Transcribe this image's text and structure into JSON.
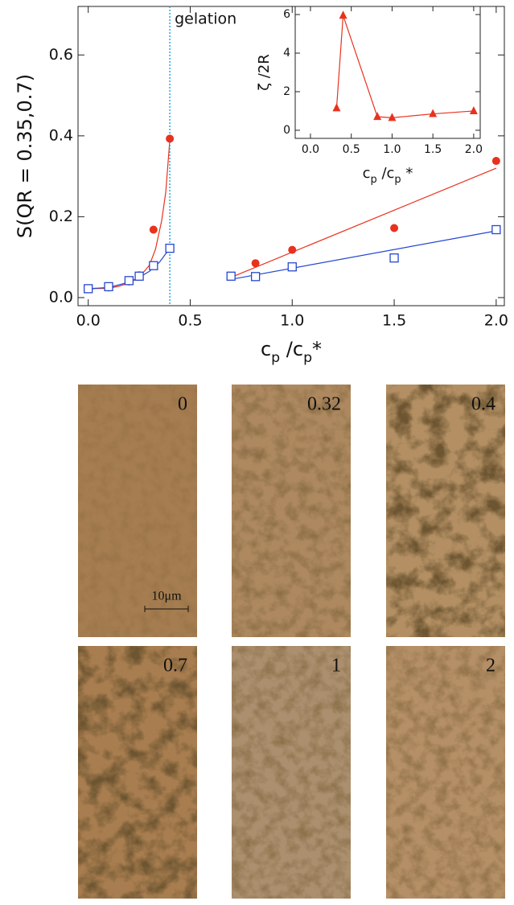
{
  "chart_data": [
    {
      "type": "scatter",
      "ylabel": "S(QR = 0.35,0.7)",
      "xlabel": [
        "c",
        "p",
        " /c",
        "p",
        "*"
      ],
      "xlim": [
        -0.05,
        2.04
      ],
      "ylim": [
        -0.02,
        0.72
      ],
      "xticks": [
        {
          "value": 0,
          "label": "0.0"
        },
        0.5,
        {
          "value": 1,
          "label": "1.0"
        },
        1.5,
        {
          "value": 2,
          "label": "2.0"
        }
      ],
      "yticks": [
        {
          "value": 0,
          "label": "0.0"
        },
        0.2,
        0.4,
        0.6
      ],
      "x": [
        0,
        0.1,
        0.2,
        0.25,
        0.32,
        0.4,
        0.7,
        0.82,
        1.0,
        1.5,
        2.0
      ],
      "series": [
        {
          "marker": "circle",
          "color": "#e8321e",
          "values": [
            0.022,
            0.025,
            0.04,
            0.055,
            0.168,
            0.393,
            0.053,
            0.085,
            0.118,
            0.172,
            0.338
          ]
        },
        {
          "marker": "square",
          "color": "#2547d0",
          "values": [
            0.022,
            0.027,
            0.042,
            0.053,
            0.079,
            0.122,
            0.053,
            0.052,
            0.076,
            0.098,
            0.168
          ]
        }
      ],
      "fits": [
        {
          "color": "#e8321e",
          "x": [
            0,
            0.1,
            0.15,
            0.2,
            0.25,
            0.3,
            0.33,
            0.36,
            0.38,
            0.4
          ],
          "values": [
            0.022,
            0.023,
            0.028,
            0.036,
            0.05,
            0.08,
            0.12,
            0.19,
            0.26,
            0.39
          ]
        },
        {
          "color": "#e8321e",
          "x": [
            0.7,
            2.0
          ],
          "values": [
            0.05,
            0.32
          ]
        },
        {
          "color": "#2547d0",
          "x": [
            0,
            0.1,
            0.2,
            0.25,
            0.3,
            0.35,
            0.4
          ],
          "values": [
            0.022,
            0.025,
            0.038,
            0.05,
            0.065,
            0.088,
            0.122
          ]
        },
        {
          "color": "#2547d0",
          "x": [
            0.7,
            2.0
          ],
          "values": [
            0.045,
            0.165
          ]
        }
      ],
      "annotation": {
        "text": "gelation",
        "x": 0.4,
        "color": "#1ab0e8"
      }
    },
    {
      "type": "line",
      "ylabel": "ζ /2R",
      "xlabel": [
        "c",
        "p",
        " /c",
        "p",
        " *"
      ],
      "xlim": [
        -0.187,
        2.08
      ],
      "ylim": [
        -0.42,
        6.42
      ],
      "xticks": [
        {
          "value": 0,
          "label": "0.0"
        },
        0.5,
        {
          "value": 1,
          "label": "1.0"
        },
        1.5,
        {
          "value": 2,
          "label": "2.0"
        }
      ],
      "yticks": [
        0,
        2,
        4,
        6
      ],
      "x": [
        0.32,
        0.4,
        0.82,
        1.0,
        1.5,
        2.0
      ],
      "series": [
        {
          "marker": "triangle",
          "color": "#e8321e",
          "values": [
            1.15,
            5.95,
            0.7,
            0.65,
            0.85,
            1.0
          ]
        }
      ]
    }
  ],
  "micrographs": {
    "scale_bar": "10μm",
    "panels": [
      {
        "label": "0",
        "color": "#a67d50"
      },
      {
        "label": "0.32",
        "color": "#ae8960"
      },
      {
        "label": "0.4",
        "color": "#b38f63"
      },
      {
        "label": "0.7",
        "color": "#a87d4f"
      },
      {
        "label": "1",
        "color": "#ab8f6e"
      },
      {
        "label": "2",
        "color": "#b58f66"
      }
    ]
  }
}
